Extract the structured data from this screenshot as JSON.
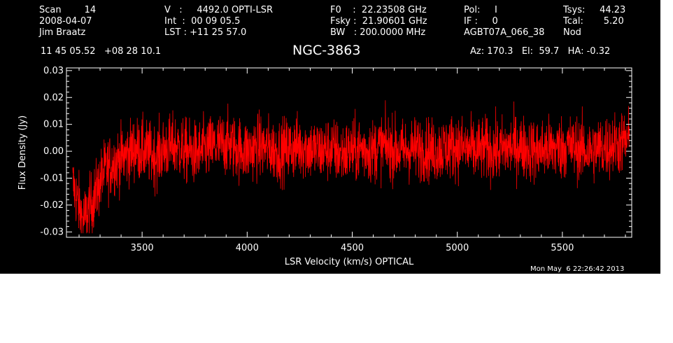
{
  "header": {
    "col1": [
      "Scan        14",
      "2008-04-07",
      "Jim Braatz"
    ],
    "col2": [
      "V   :     4492.0 OPTI-LSR",
      "Int  :  00 09 05.5",
      "LST : +11 25 57.0"
    ],
    "col3": [
      "F0    :  22.23508 GHz",
      "Fsky :  21.90601 GHz",
      "BW   : 200.0000 MHz"
    ],
    "col4": [
      "Pol:     I",
      "IF :     0",
      "AGBT07A_066_38"
    ],
    "col5": [
      "Tsys:     44.23",
      "Tcal:       5.20",
      "Nod"
    ],
    "coords": "11 45 05.52   +08 28 10.1",
    "source": "NGC-3863",
    "azel": "Az: 170.3   El:  59.7   HA: -0.32"
  },
  "timestamp": "Mon May  6 22:26:42 2013",
  "colors": {
    "background": "#000000",
    "foreground": "#ffffff",
    "series": "#ff0000"
  },
  "chart_data": {
    "type": "line",
    "title": "NGC-3863",
    "xlabel": "LSR Velocity (km/s) OPTICAL",
    "ylabel": "Flux Density (Jy)",
    "xlim": [
      3140,
      5830
    ],
    "ylim": [
      -0.032,
      0.031
    ],
    "x_ticks": [
      3500,
      4000,
      4500,
      5000,
      5500
    ],
    "x_tick_labels": [
      "3500",
      "4000",
      "4500",
      "5000",
      "5500"
    ],
    "y_ticks": [
      -0.03,
      -0.02,
      -0.01,
      0.0,
      0.01,
      0.02,
      0.03
    ],
    "y_tick_labels": [
      "-0.03",
      "-0.02",
      "-0.01",
      "0.00",
      "0.01",
      "0.02",
      "0.03"
    ],
    "grid": false,
    "series": [
      {
        "color": "#ff0000",
        "x_start": 3170,
        "x_end": 5820,
        "noise_rms_jy": 0.006,
        "values": [
          -0.012,
          -0.026,
          -0.018,
          -0.008,
          -0.004,
          -0.002,
          0.001,
          0.0,
          -0.002,
          0.001,
          0.002,
          0.0,
          -0.001,
          0.001,
          0.002,
          0.003,
          0.001,
          0.0,
          0.002,
          0.001,
          0.0,
          0.001,
          0.002,
          0.001,
          0.0,
          0.001,
          -0.001,
          0.0,
          0.001,
          0.0,
          0.002,
          0.001,
          0.0,
          0.001,
          0.001,
          0.0,
          0.001,
          0.002,
          0.001,
          0.0,
          0.001,
          0.0,
          0.001,
          0.002,
          0.001,
          0.0,
          0.001,
          0.001,
          0.002,
          0.001,
          0.0,
          0.001,
          0.002,
          0.003,
          0.004
        ]
      }
    ]
  }
}
